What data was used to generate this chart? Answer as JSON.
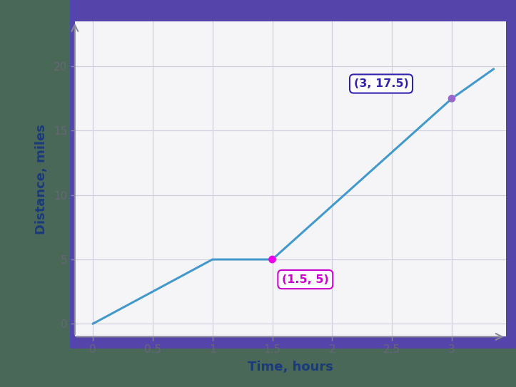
{
  "line_x": [
    0,
    1,
    1.5,
    3,
    3.35
  ],
  "line_y": [
    0,
    5,
    5,
    17.5,
    19.8
  ],
  "point1": [
    1.5,
    5
  ],
  "point2": [
    3,
    17.5
  ],
  "label1": "(1.5, 5)",
  "label2": "(3, 17.5)",
  "xlabel": "Time, hours",
  "ylabel": "Distance, miles",
  "xlim": [
    -0.15,
    3.45
  ],
  "ylim": [
    -1.0,
    23.5
  ],
  "xticks": [
    0,
    0.5,
    1,
    1.5,
    2,
    2.5,
    3
  ],
  "xtick_labels": [
    "0",
    "0.5",
    "1",
    "1.5",
    "2",
    "2.5",
    "3"
  ],
  "yticks": [
    0,
    5,
    10,
    15,
    20
  ],
  "ytick_labels": [
    "0",
    "5",
    "10",
    "15",
    "20"
  ],
  "line_color": "#4499cc",
  "point1_color": "#ee00ee",
  "point2_color": "#9966cc",
  "label1_text_color": "#cc00cc",
  "label2_text_color": "#3322aa",
  "outer_left_bg": "#4a6e5a",
  "outer_border_color": "#5544aa",
  "inner_bg": "#f5f5f8",
  "grid_color": "#ccccdd",
  "axis_color": "#999999",
  "axis_label_color": "#1a3a7a",
  "tick_label_color": "#666677",
  "line_width": 2.2,
  "point_size": 60,
  "arrow_color": "#888899"
}
